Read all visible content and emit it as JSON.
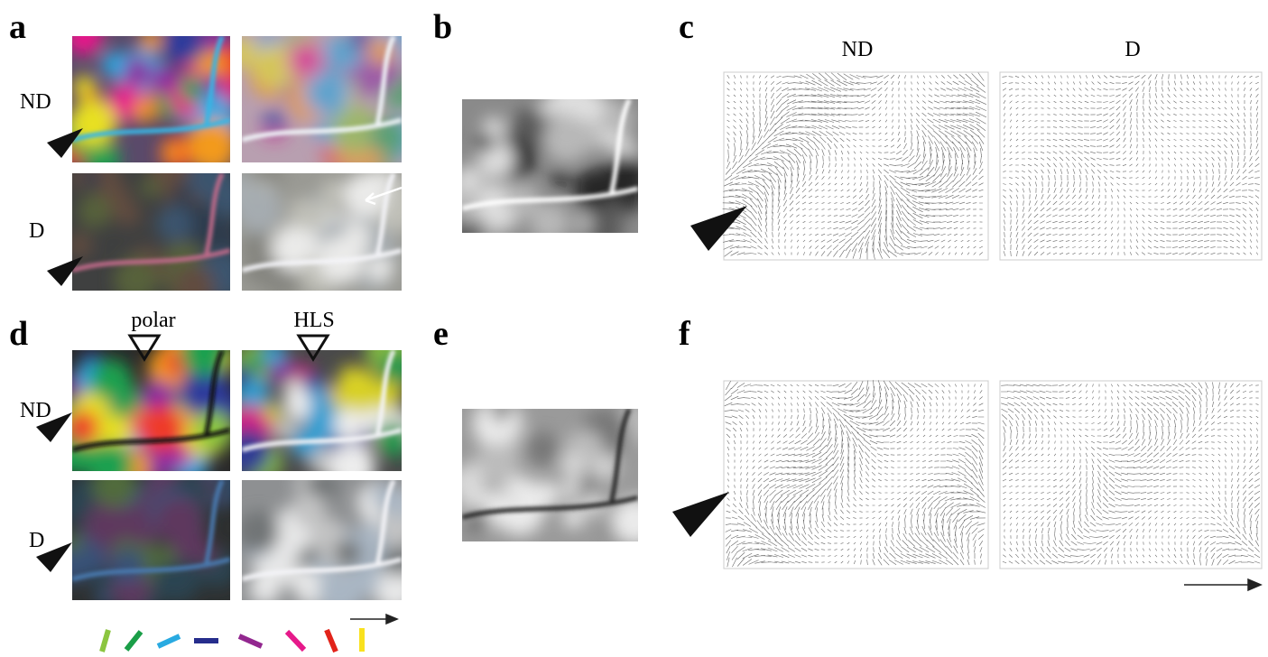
{
  "panels": [
    {
      "letter": "a",
      "row_labels": [
        "ND",
        "D"
      ]
    },
    {
      "letter": "b"
    },
    {
      "letter": "c",
      "column_labels": [
        "ND",
        "D"
      ]
    },
    {
      "letter": "d",
      "row_labels": [
        "ND",
        "D"
      ],
      "column_labels": [
        "polar",
        "HLS"
      ]
    },
    {
      "letter": "e"
    },
    {
      "letter": "f"
    }
  ]
}
